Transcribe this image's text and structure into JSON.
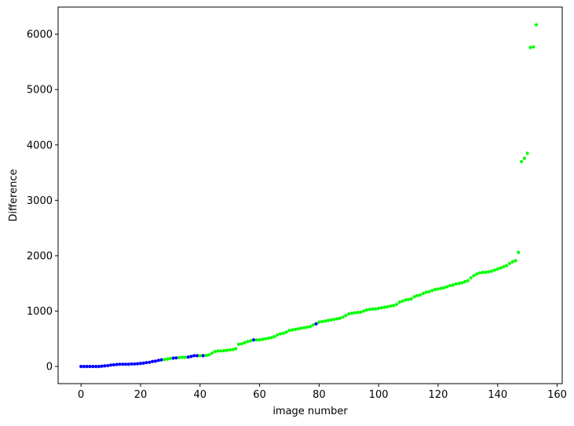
{
  "chart_data": {
    "type": "scatter",
    "title": "",
    "xlabel": "image number",
    "ylabel": "Difference",
    "xlim": [
      -7.7,
      161.7
    ],
    "ylim": [
      -310,
      6490
    ],
    "xticks": [
      0,
      20,
      40,
      60,
      80,
      100,
      120,
      140,
      160
    ],
    "yticks": [
      0,
      1000,
      2000,
      3000,
      4000,
      5000,
      6000
    ],
    "grid": false,
    "legend": "none",
    "colors": {
      "primary": "#0000ff",
      "secondary": "#00ff00"
    },
    "series": [
      {
        "color": "#0000ff",
        "points": [
          [
            0,
            0
          ],
          [
            1,
            0
          ],
          [
            2,
            0
          ],
          [
            3,
            0
          ],
          [
            4,
            0
          ],
          [
            5,
            0
          ],
          [
            6,
            0
          ],
          [
            7,
            5
          ],
          [
            8,
            10
          ],
          [
            9,
            15
          ],
          [
            10,
            25
          ],
          [
            11,
            30
          ],
          [
            12,
            35
          ],
          [
            13,
            40
          ],
          [
            14,
            40
          ],
          [
            15,
            40
          ],
          [
            16,
            40
          ],
          [
            17,
            45
          ],
          [
            18,
            45
          ],
          [
            19,
            50
          ],
          [
            20,
            55
          ],
          [
            21,
            60
          ],
          [
            22,
            70
          ],
          [
            23,
            75
          ],
          [
            24,
            90
          ],
          [
            25,
            95
          ],
          [
            26,
            110
          ],
          [
            27,
            120
          ],
          [
            31,
            150
          ],
          [
            32,
            155
          ],
          [
            36,
            170
          ],
          [
            37,
            180
          ],
          [
            38,
            195
          ],
          [
            39,
            195
          ],
          [
            41,
            195
          ],
          [
            58,
            480
          ],
          [
            79,
            770
          ]
        ]
      },
      {
        "color": "#00ff00",
        "points": [
          [
            28,
            125
          ],
          [
            29,
            135
          ],
          [
            30,
            145
          ],
          [
            33,
            160
          ],
          [
            34,
            165
          ],
          [
            35,
            165
          ],
          [
            40,
            195
          ],
          [
            42,
            200
          ],
          [
            43,
            210
          ],
          [
            44,
            240
          ],
          [
            45,
            270
          ],
          [
            46,
            280
          ],
          [
            47,
            280
          ],
          [
            48,
            285
          ],
          [
            49,
            290
          ],
          [
            50,
            300
          ],
          [
            51,
            305
          ],
          [
            52,
            320
          ],
          [
            53,
            400
          ],
          [
            54,
            410
          ],
          [
            55,
            430
          ],
          [
            56,
            450
          ],
          [
            57,
            465
          ],
          [
            59,
            480
          ],
          [
            60,
            480
          ],
          [
            61,
            490
          ],
          [
            62,
            500
          ],
          [
            63,
            510
          ],
          [
            64,
            520
          ],
          [
            65,
            540
          ],
          [
            66,
            570
          ],
          [
            67,
            590
          ],
          [
            68,
            600
          ],
          [
            69,
            620
          ],
          [
            70,
            650
          ],
          [
            71,
            660
          ],
          [
            72,
            670
          ],
          [
            73,
            680
          ],
          [
            74,
            690
          ],
          [
            75,
            700
          ],
          [
            76,
            710
          ],
          [
            77,
            720
          ],
          [
            78,
            750
          ],
          [
            80,
            800
          ],
          [
            81,
            810
          ],
          [
            82,
            820
          ],
          [
            83,
            830
          ],
          [
            84,
            840
          ],
          [
            85,
            850
          ],
          [
            86,
            860
          ],
          [
            87,
            870
          ],
          [
            88,
            890
          ],
          [
            89,
            920
          ],
          [
            90,
            950
          ],
          [
            91,
            960
          ],
          [
            92,
            970
          ],
          [
            93,
            975
          ],
          [
            94,
            980
          ],
          [
            95,
            1000
          ],
          [
            96,
            1020
          ],
          [
            97,
            1030
          ],
          [
            98,
            1040
          ],
          [
            99,
            1040
          ],
          [
            100,
            1050
          ],
          [
            101,
            1060
          ],
          [
            102,
            1070
          ],
          [
            103,
            1080
          ],
          [
            104,
            1090
          ],
          [
            105,
            1100
          ],
          [
            106,
            1120
          ],
          [
            107,
            1160
          ],
          [
            108,
            1180
          ],
          [
            109,
            1200
          ],
          [
            110,
            1210
          ],
          [
            111,
            1220
          ],
          [
            112,
            1260
          ],
          [
            113,
            1280
          ],
          [
            114,
            1290
          ],
          [
            115,
            1320
          ],
          [
            116,
            1340
          ],
          [
            117,
            1350
          ],
          [
            118,
            1370
          ],
          [
            119,
            1390
          ],
          [
            120,
            1400
          ],
          [
            121,
            1410
          ],
          [
            122,
            1420
          ],
          [
            123,
            1440
          ],
          [
            124,
            1460
          ],
          [
            125,
            1470
          ],
          [
            126,
            1490
          ],
          [
            127,
            1500
          ],
          [
            128,
            1510
          ],
          [
            129,
            1530
          ],
          [
            130,
            1550
          ],
          [
            131,
            1600
          ],
          [
            132,
            1640
          ],
          [
            133,
            1670
          ],
          [
            134,
            1690
          ],
          [
            135,
            1700
          ],
          [
            136,
            1700
          ],
          [
            137,
            1710
          ],
          [
            138,
            1720
          ],
          [
            139,
            1740
          ],
          [
            140,
            1760
          ],
          [
            141,
            1780
          ],
          [
            142,
            1800
          ],
          [
            143,
            1820
          ],
          [
            144,
            1860
          ],
          [
            145,
            1890
          ],
          [
            146,
            1910
          ],
          [
            147,
            2060
          ],
          [
            148,
            3700
          ],
          [
            149,
            3760
          ],
          [
            150,
            3850
          ],
          [
            151,
            5760
          ],
          [
            152,
            5770
          ],
          [
            153,
            6170
          ]
        ]
      }
    ]
  }
}
